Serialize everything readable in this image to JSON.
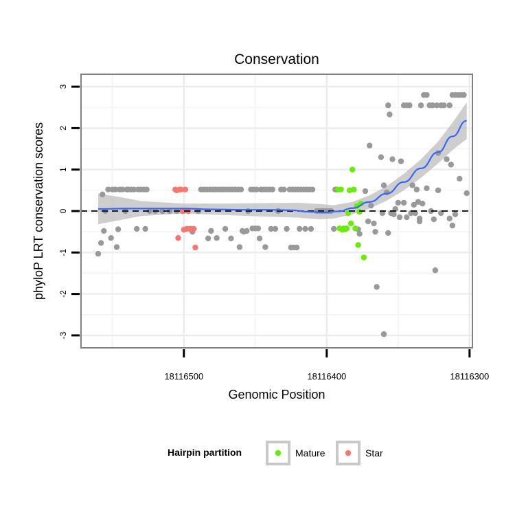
{
  "chart_data": {
    "type": "scatter",
    "title": "Conservation",
    "xlabel": "Genomic Position",
    "ylabel": "phyloP LRT conservation scores",
    "x_reversed": true,
    "xlim": [
      18116572,
      18116298
    ],
    "ylim": [
      -3.3,
      3.3
    ],
    "x_ticks": [
      18116500,
      18116400,
      18116300
    ],
    "y_ticks": [
      -3,
      -2,
      -1,
      0,
      1,
      2,
      3
    ],
    "grid": true,
    "hline": 0,
    "legend": {
      "title": "Hairpin partition",
      "position": "bottom",
      "entries": [
        {
          "label": "Mature",
          "color": "#66ee00"
        },
        {
          "label": "Star",
          "color": "#f8766d"
        }
      ]
    },
    "colors": {
      "other": "#999999",
      "Mature": "#66ee00",
      "Star": "#f8766d",
      "smooth": "#3366ff",
      "ribbon": "#bdbdbd"
    },
    "series": [
      {
        "group": "other",
        "points": [
          [
            18116560,
            -1.03
          ],
          [
            18116558,
            -0.77
          ],
          [
            18116557,
            0.4
          ],
          [
            18116556,
            -0.48
          ],
          [
            18116555,
            0.0
          ],
          [
            18116553,
            0.52
          ],
          [
            18116551,
            -0.65
          ],
          [
            18116550,
            0.52
          ],
          [
            18116548,
            0.52
          ],
          [
            18116547,
            -0.87
          ],
          [
            18116546,
            -0.44
          ],
          [
            18116545,
            0.52
          ],
          [
            18116543,
            0.52
          ],
          [
            18116541,
            0.0
          ],
          [
            18116540,
            0.52
          ],
          [
            18116539,
            0.52
          ],
          [
            18116537,
            0.52
          ],
          [
            18116535,
            0.52
          ],
          [
            18116533,
            -0.43
          ],
          [
            18116532,
            0.52
          ],
          [
            18116530,
            0.52
          ],
          [
            18116528,
            0.52
          ],
          [
            18116527,
            -0.43
          ],
          [
            18116526,
            0.52
          ],
          [
            18116524,
            0.0
          ],
          [
            18116520,
            0.0
          ],
          [
            18116515,
            0.0
          ],
          [
            18116510,
            0.0
          ],
          [
            18116505,
            0.0
          ],
          [
            18116500,
            0.0
          ],
          [
            18116494,
            -0.5
          ],
          [
            18116490,
            0.0
          ],
          [
            18116488,
            0.52
          ],
          [
            18116486,
            0.52
          ],
          [
            18116484,
            0.52
          ],
          [
            18116483,
            -0.66
          ],
          [
            18116482,
            0.52
          ],
          [
            18116481,
            -0.48
          ],
          [
            18116480,
            0.52
          ],
          [
            18116478,
            0.52
          ],
          [
            18116477,
            -0.65
          ],
          [
            18116476,
            0.52
          ],
          [
            18116474,
            0.52
          ],
          [
            18116472,
            0.52
          ],
          [
            18116471,
            -0.43
          ],
          [
            18116470,
            0.52
          ],
          [
            18116468,
            0.52
          ],
          [
            18116467,
            -0.66
          ],
          [
            18116466,
            0.52
          ],
          [
            18116464,
            0.52
          ],
          [
            18116462,
            0.52
          ],
          [
            18116461,
            -0.87
          ],
          [
            18116460,
            0.52
          ],
          [
            18116459,
            -0.48
          ],
          [
            18116458,
            -0.5
          ],
          [
            18116456,
            -0.48
          ],
          [
            18116455,
            0.0
          ],
          [
            18116453,
            0.52
          ],
          [
            18116452,
            -0.42
          ],
          [
            18116451,
            0.52
          ],
          [
            18116450,
            -0.42
          ],
          [
            18116449,
            0.52
          ],
          [
            18116448,
            -0.42
          ],
          [
            18116447,
            -0.66
          ],
          [
            18116446,
            0.52
          ],
          [
            18116444,
            0.52
          ],
          [
            18116443,
            -0.87
          ],
          [
            18116442,
            0.52
          ],
          [
            18116440,
            0.52
          ],
          [
            18116439,
            -0.43
          ],
          [
            18116438,
            0.52
          ],
          [
            18116436,
            -0.43
          ],
          [
            18116434,
            0.0
          ],
          [
            18116432,
            0.52
          ],
          [
            18116430,
            0.52
          ],
          [
            18116428,
            -0.43
          ],
          [
            18116426,
            0.52
          ],
          [
            18116425,
            -0.88
          ],
          [
            18116424,
            0.52
          ],
          [
            18116423,
            -0.88
          ],
          [
            18116422,
            0.52
          ],
          [
            18116421,
            -0.88
          ],
          [
            18116420,
            0.52
          ],
          [
            18116419,
            -0.43
          ],
          [
            18116418,
            0.52
          ],
          [
            18116416,
            0.52
          ],
          [
            18116415,
            -0.43
          ],
          [
            18116414,
            0.52
          ],
          [
            18116412,
            0.52
          ],
          [
            18116411,
            -0.43
          ],
          [
            18116410,
            0.52
          ],
          [
            18116407,
            0.0
          ],
          [
            18116405,
            0.0
          ],
          [
            18116403,
            0.0
          ],
          [
            18116401,
            0.0
          ],
          [
            18116399,
            0.0
          ],
          [
            18116397,
            0.0
          ],
          [
            18116395,
            -0.43
          ],
          [
            18116394,
            0.52
          ],
          [
            18116393,
            0.52
          ],
          [
            18116373,
            0.48
          ],
          [
            18116377,
            -0.55
          ],
          [
            18116378,
            -0.44
          ],
          [
            18116370,
            1.58
          ],
          [
            18116369,
            0.13
          ],
          [
            18116367,
            -0.3
          ],
          [
            18116366,
            -0.5
          ],
          [
            18116365,
            -1.83
          ],
          [
            18116362,
            1.3
          ],
          [
            18116360,
            0.62
          ],
          [
            18116358,
            0.45
          ],
          [
            18116357,
            2.55
          ],
          [
            18116356,
            2.33
          ],
          [
            18116354,
            1.25
          ],
          [
            18116353,
            -0.08
          ],
          [
            18116352,
            0.05
          ],
          [
            18116350,
            0.2
          ],
          [
            18116349,
            -0.15
          ],
          [
            18116348,
            1.2
          ],
          [
            18116346,
            2.55
          ],
          [
            18116344,
            2.55
          ],
          [
            18116342,
            2.55
          ],
          [
            18116340,
            0.62
          ],
          [
            18116339,
            0.15
          ],
          [
            18116338,
            -0.05
          ],
          [
            18116337,
            0.52
          ],
          [
            18116336,
            0.22
          ],
          [
            18116335,
            -0.18
          ],
          [
            18116334,
            2.55
          ],
          [
            18116332,
            2.8
          ],
          [
            18116330,
            2.8
          ],
          [
            18116328,
            2.55
          ],
          [
            18116326,
            2.55
          ],
          [
            18116323,
            2.55
          ],
          [
            18116320,
            2.55
          ],
          [
            18116318,
            2.55
          ],
          [
            18116314,
            2.55
          ],
          [
            18116312,
            2.8
          ],
          [
            18116310,
            2.8
          ],
          [
            18116308,
            2.8
          ],
          [
            18116306,
            2.8
          ],
          [
            18116304,
            2.8
          ],
          [
            18116302,
            0.43
          ],
          [
            18116357,
            -0.53
          ],
          [
            18116371,
            -0.25
          ],
          [
            18116361,
            -0.05
          ],
          [
            18116335,
            -0.25
          ],
          [
            18116325,
            -0.2
          ],
          [
            18116322,
            0.5
          ],
          [
            18116320,
            -0.05
          ],
          [
            18116314,
            -0.18
          ],
          [
            18116312,
            -0.35
          ],
          [
            18116310,
            -0.08
          ],
          [
            18116333,
            0.18
          ],
          [
            18116322,
            1.4
          ],
          [
            18116330,
            0.55
          ],
          [
            18116344,
            -0.15
          ],
          [
            18116346,
            0.2
          ],
          [
            18116341,
            -0.05
          ],
          [
            18116355,
            -0.05
          ],
          [
            18116316,
            1.25
          ],
          [
            18116313,
            1.12
          ],
          [
            18116307,
            0.78
          ],
          [
            18116324,
            -1.43
          ],
          [
            18116327,
            0.0
          ],
          [
            18116360,
            -2.97
          ]
        ]
      },
      {
        "group": "Star",
        "points": [
          [
            18116506,
            0.52
          ],
          [
            18116503,
            0.52
          ],
          [
            18116502,
            0.52
          ],
          [
            18116498,
            -0.43
          ],
          [
            18116496,
            -0.43
          ],
          [
            18116495,
            -0.43
          ],
          [
            18116493,
            -0.43
          ],
          [
            18116504,
            -0.65
          ],
          [
            18116505,
            0.5
          ],
          [
            18116501,
            0.0
          ],
          [
            18116499,
            0.52
          ],
          [
            18116492,
            -0.88
          ],
          [
            18116497,
            0.0
          ],
          [
            18116500,
            -0.45
          ]
        ]
      },
      {
        "group": "Mature",
        "points": [
          [
            18116392,
            0.52
          ],
          [
            18116390,
            0.52
          ],
          [
            18116388,
            -0.42
          ],
          [
            18116386,
            -0.42
          ],
          [
            18116385,
            -0.05
          ],
          [
            18116384,
            0.5
          ],
          [
            18116383,
            -0.3
          ],
          [
            18116382,
            1.0
          ],
          [
            18116381,
            0.52
          ],
          [
            18116380,
            -0.42
          ],
          [
            18116379,
            0.12
          ],
          [
            18116378,
            -0.82
          ],
          [
            18116377,
            -0.02
          ],
          [
            18116376,
            0.18
          ],
          [
            18116374,
            -1.12
          ],
          [
            18116391,
            -0.42
          ],
          [
            18116389,
            -0.45
          ],
          [
            18116387,
            -0.44
          ]
        ]
      }
    ],
    "smooth": [
      [
        18116560,
        0.05
      ],
      [
        18116540,
        0.06
      ],
      [
        18116520,
        0.06
      ],
      [
        18116500,
        0.06
      ],
      [
        18116480,
        0.04
      ],
      [
        18116460,
        0.03
      ],
      [
        18116440,
        0.03
      ],
      [
        18116425,
        0.02
      ],
      [
        18116412,
        -0.02
      ],
      [
        18116402,
        -0.03
      ],
      [
        18116392,
        -0.01
      ],
      [
        18116382,
        0.07
      ],
      [
        18116370,
        0.22
      ],
      [
        18116358,
        0.42
      ],
      [
        18116346,
        0.7
      ],
      [
        18116334,
        1.03
      ],
      [
        18116322,
        1.42
      ],
      [
        18116312,
        1.8
      ],
      [
        18116302,
        2.18
      ]
    ],
    "ribbon": [
      [
        18116560,
        0.42,
        -0.32
      ],
      [
        18116545,
        0.34,
        -0.22
      ],
      [
        18116530,
        0.24,
        -0.12
      ],
      [
        18116500,
        0.18,
        -0.06
      ],
      [
        18116470,
        0.18,
        -0.1
      ],
      [
        18116445,
        0.19,
        -0.13
      ],
      [
        18116420,
        0.2,
        -0.16
      ],
      [
        18116405,
        0.17,
        -0.2
      ],
      [
        18116395,
        0.14,
        -0.18
      ],
      [
        18116382,
        0.22,
        -0.08
      ],
      [
        18116370,
        0.38,
        0.06
      ],
      [
        18116358,
        0.6,
        0.25
      ],
      [
        18116346,
        0.9,
        0.5
      ],
      [
        18116334,
        1.25,
        0.8
      ],
      [
        18116322,
        1.68,
        1.15
      ],
      [
        18116312,
        2.13,
        1.47
      ],
      [
        18116302,
        2.62,
        1.74
      ]
    ]
  }
}
